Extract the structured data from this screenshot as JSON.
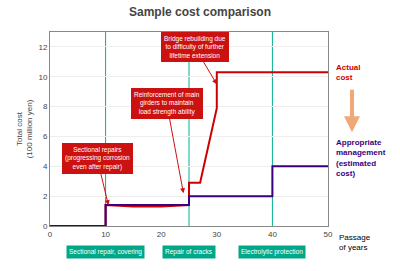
{
  "chart_data": {
    "type": "line",
    "title": "Sample cost comparison",
    "y_label": "Total cost\n(100 million yen)",
    "x_label": "Passage\nof years",
    "xlim": [
      0,
      50
    ],
    "ylim": [
      0,
      13
    ],
    "xticks": [
      0,
      10,
      20,
      30,
      40,
      50
    ],
    "yticks": [
      0,
      2,
      4,
      6,
      8,
      10,
      12
    ],
    "grid": "y",
    "series": [
      {
        "name": "Actual\ncost",
        "color": "#cc0000",
        "x": [
          0,
          10,
          10,
          15,
          20,
          25,
          25,
          27,
          30,
          30,
          32,
          40,
          40,
          50
        ],
        "values": [
          0,
          0,
          1.4,
          1.3,
          1.3,
          1.4,
          2.9,
          2.9,
          7.9,
          10.3,
          10.3,
          10.3,
          10.3,
          10.3
        ]
      },
      {
        "name": "Appropriate\nmanagement\n(estimated\ncost)",
        "color": "#3a0080",
        "x": [
          0,
          10,
          10,
          25,
          25,
          40,
          40,
          50
        ],
        "values": [
          0,
          0,
          1.4,
          1.4,
          2.0,
          2.0,
          4.0,
          4.0
        ]
      }
    ],
    "annotations": [
      {
        "text": "Sectional repairs\n(progressing corrosion\neven after repair)",
        "x": 10.5,
        "y": 1.4,
        "text_x": 8.5,
        "text_y": 4.5
      },
      {
        "text": "Reinforcement of main\ngirders to maintain\nload strength ability",
        "x": 24,
        "y": 2.2,
        "text_x": 21,
        "text_y": 8.2
      },
      {
        "text": "Bridge rebuilding due\nto difficulty of further\nlifetime extension",
        "x": 30,
        "y": 9.5,
        "text_x": 26,
        "text_y": 12.0
      }
    ],
    "annotation_color": "#cc1111",
    "annotation_text_color": "#ffffff",
    "vlines": [
      {
        "x": 10,
        "label": "Sectional repair, covering",
        "color": "#00a88a"
      },
      {
        "x": 25,
        "label": "Repair of cracks",
        "color": "#00a88a"
      },
      {
        "x": 40,
        "label": "Electrolytic protection",
        "color": "#00a88a"
      }
    ],
    "vline_color": "#00b090",
    "arrow_color": "#f0a878"
  }
}
